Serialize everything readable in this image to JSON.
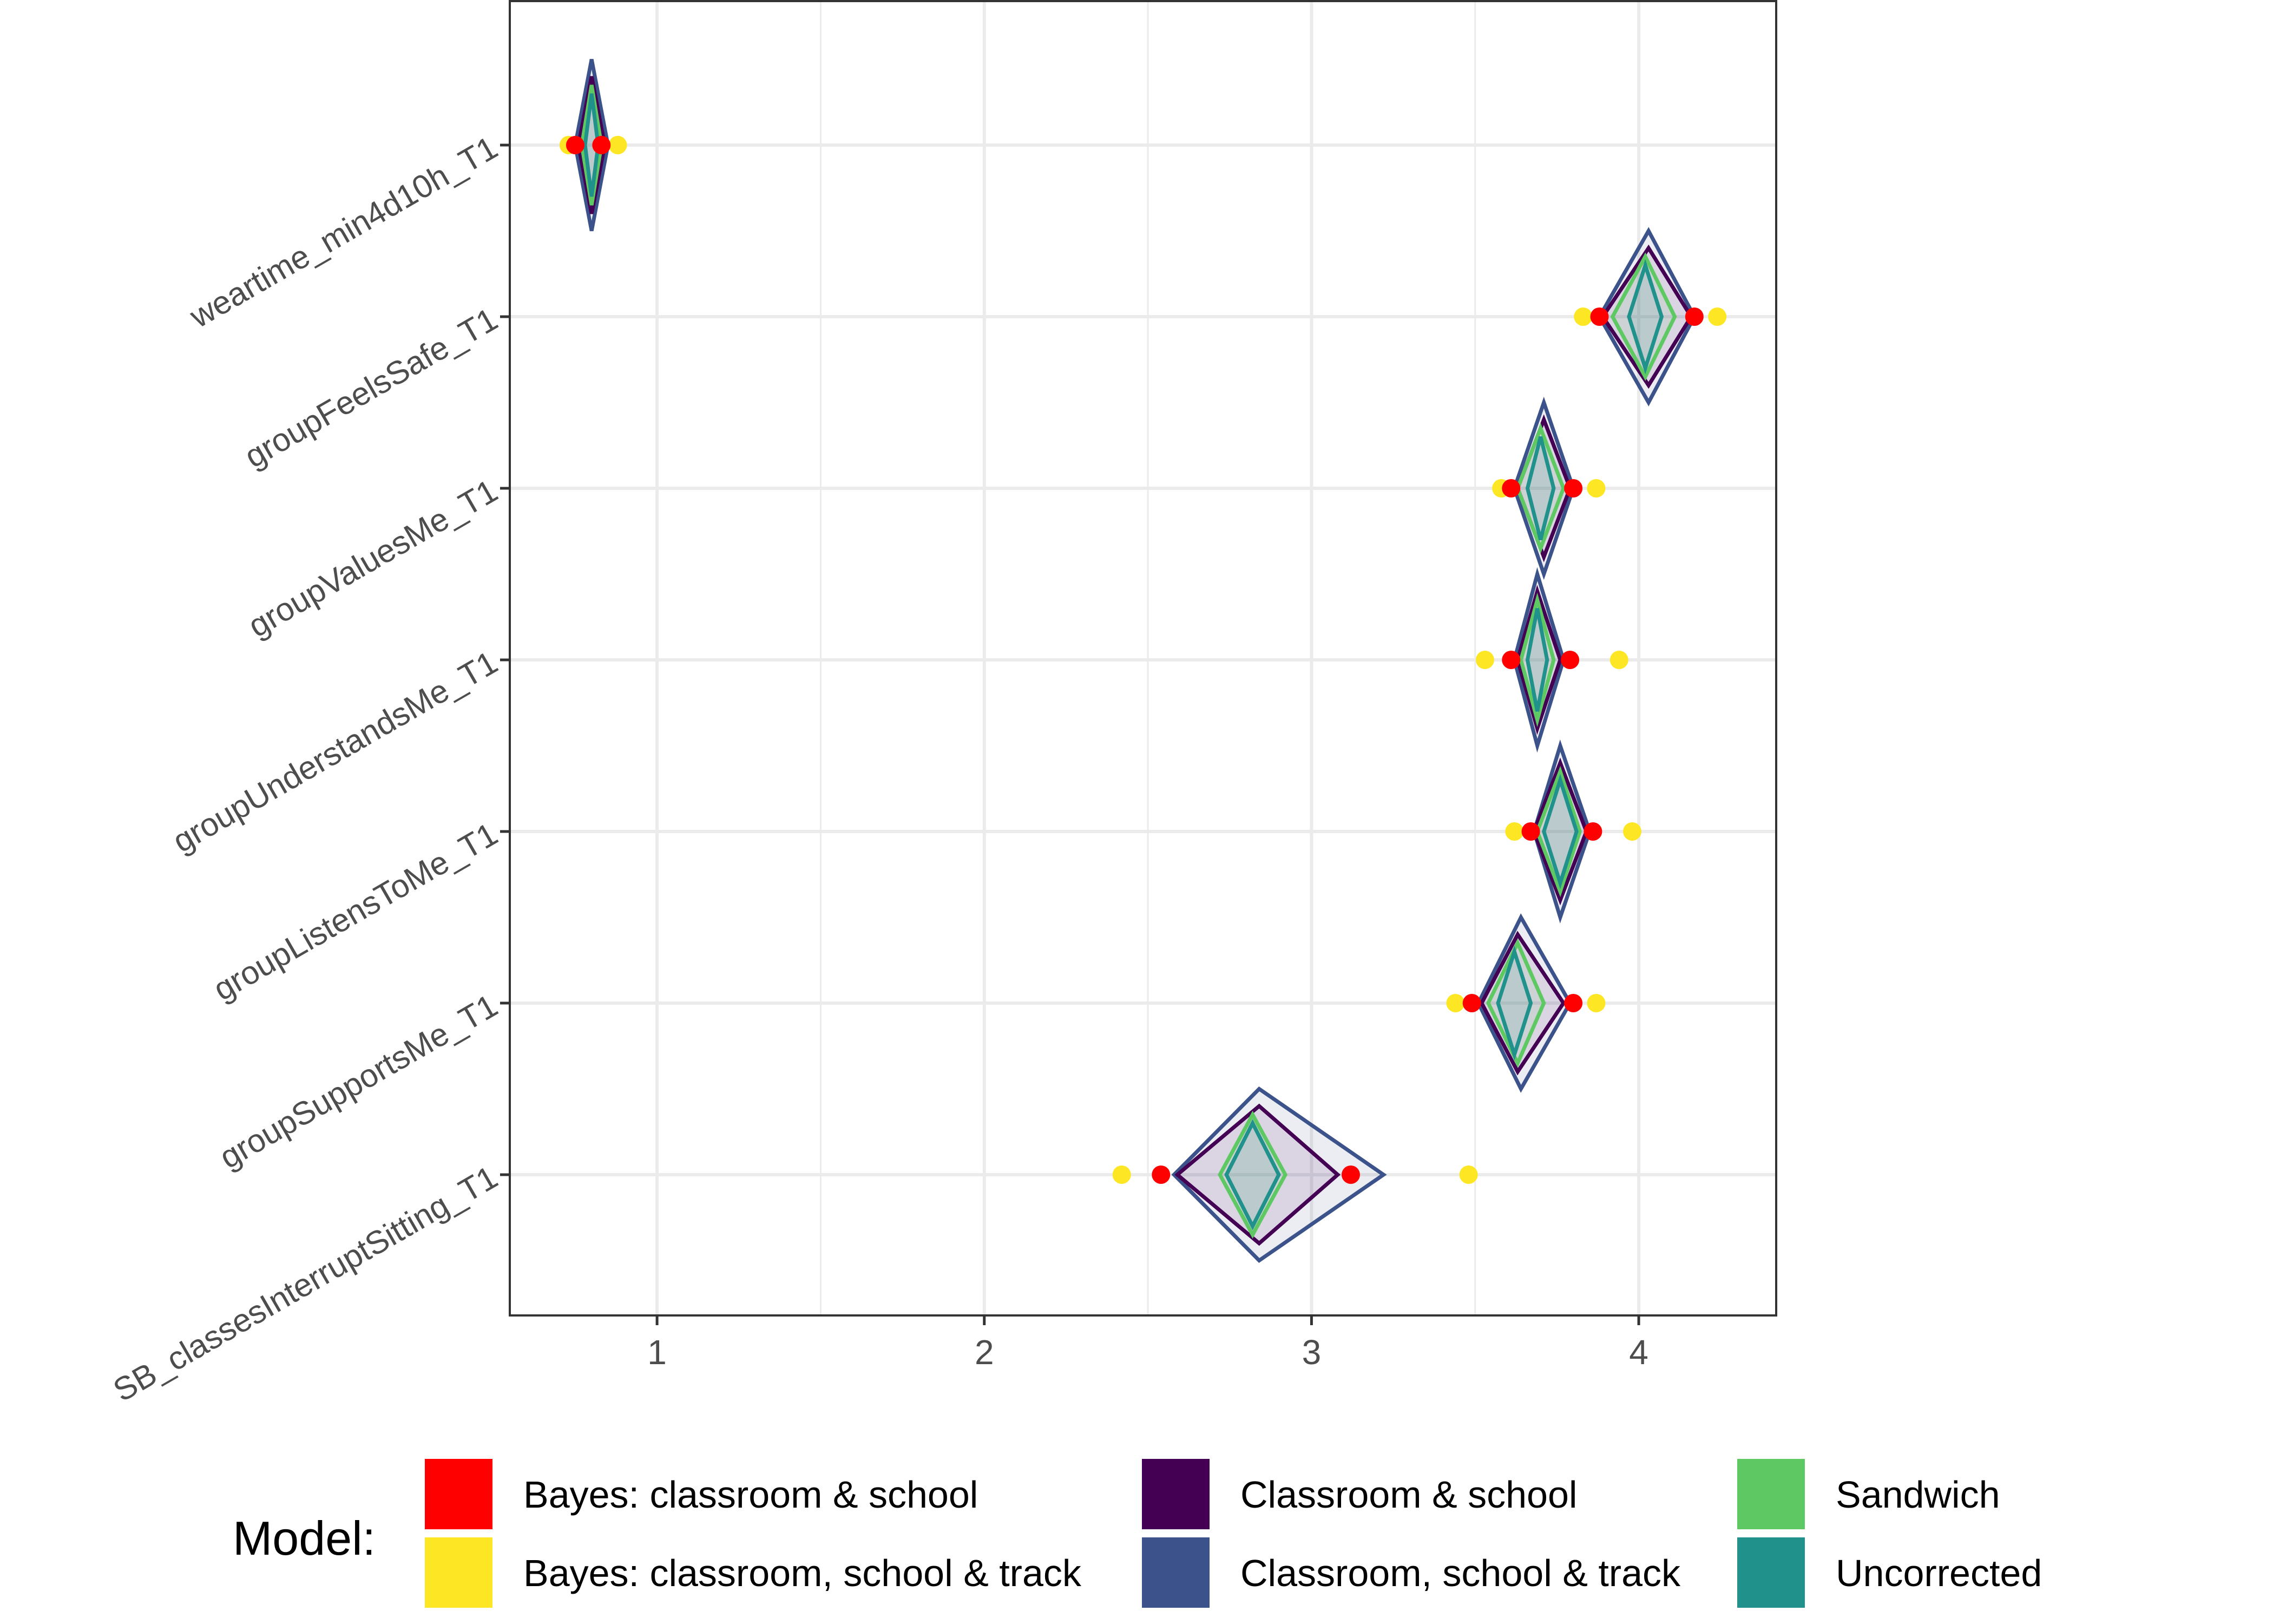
{
  "chart_data": {
    "type": "diamond-interval",
    "title": "",
    "xlabel": "",
    "ylabel": "",
    "xlim": [
      0.55,
      4.42
    ],
    "x_ticks": [
      1,
      2,
      3,
      4
    ],
    "grid": true,
    "legend": {
      "title": "Model:",
      "placement": "bottom",
      "items": [
        {
          "name": "Bayes: classroom & school",
          "color": "#ff0000"
        },
        {
          "name": "Bayes: classroom, school & track",
          "color": "#fde725"
        },
        {
          "name": "Classroom & school",
          "color": "#440154"
        },
        {
          "name": "Classroom, school & track",
          "color": "#3b528b"
        },
        {
          "name": "Sandwich",
          "color": "#5ec962"
        },
        {
          "name": "Uncorrected",
          "color": "#21918c"
        }
      ]
    },
    "categories": [
      "weartime_min4d10h_T1",
      "groupFeelsSafe_T1",
      "groupValuesMe_T1",
      "groupUnderstandsMe_T1",
      "groupListensToMe_T1",
      "groupSupportsMe_T1",
      "SB_classesInterruptSitting_T1"
    ],
    "series": [
      {
        "name": "Uncorrected",
        "center": [
          0.8,
          4.02,
          3.7,
          3.69,
          3.76,
          3.62,
          2.82
        ],
        "lower": [
          0.78,
          3.97,
          3.66,
          3.66,
          3.71,
          3.57,
          2.74
        ],
        "upper": [
          0.82,
          4.07,
          3.74,
          3.72,
          3.81,
          3.67,
          2.9
        ],
        "half_height": [
          0.3,
          0.3,
          0.3,
          0.3,
          0.3,
          0.3,
          0.3
        ]
      },
      {
        "name": "Sandwich",
        "center": [
          0.8,
          4.02,
          3.7,
          3.69,
          3.76,
          3.63,
          2.82
        ],
        "lower": [
          0.77,
          3.92,
          3.63,
          3.64,
          3.69,
          3.54,
          2.72
        ],
        "upper": [
          0.83,
          4.11,
          3.77,
          3.74,
          3.82,
          3.71,
          2.92
        ],
        "half_height": [
          0.35,
          0.35,
          0.35,
          0.35,
          0.35,
          0.35,
          0.35
        ]
      },
      {
        "name": "Classroom & school",
        "center": [
          0.8,
          4.03,
          3.71,
          3.69,
          3.76,
          3.63,
          2.84
        ],
        "lower": [
          0.76,
          3.89,
          3.63,
          3.63,
          3.68,
          3.52,
          2.59
        ],
        "upper": [
          0.84,
          4.16,
          3.79,
          3.76,
          3.84,
          3.77,
          3.08
        ],
        "half_height": [
          0.4,
          0.4,
          0.4,
          0.4,
          0.4,
          0.4,
          0.4
        ]
      },
      {
        "name": "Classroom, school & track",
        "center": [
          0.8,
          4.03,
          3.71,
          3.69,
          3.76,
          3.64,
          2.84
        ],
        "lower": [
          0.75,
          3.88,
          3.62,
          3.62,
          3.68,
          3.51,
          2.58
        ],
        "upper": [
          0.85,
          4.17,
          3.8,
          3.77,
          3.85,
          3.79,
          3.22
        ],
        "half_height": [
          0.5,
          0.5,
          0.5,
          0.5,
          0.5,
          0.5,
          0.5
        ]
      }
    ],
    "bayes_points": [
      {
        "name": "Bayes: classroom & school",
        "lower": [
          0.75,
          3.88,
          3.61,
          3.61,
          3.67,
          3.49,
          2.54
        ],
        "upper": [
          0.83,
          4.17,
          3.8,
          3.79,
          3.86,
          3.8,
          3.12
        ]
      },
      {
        "name": "Bayes: classroom, school & track",
        "lower": [
          0.73,
          3.83,
          3.58,
          3.53,
          3.62,
          3.44,
          2.42
        ],
        "upper": [
          0.88,
          4.24,
          3.87,
          3.94,
          3.98,
          3.87,
          3.48
        ]
      }
    ]
  }
}
